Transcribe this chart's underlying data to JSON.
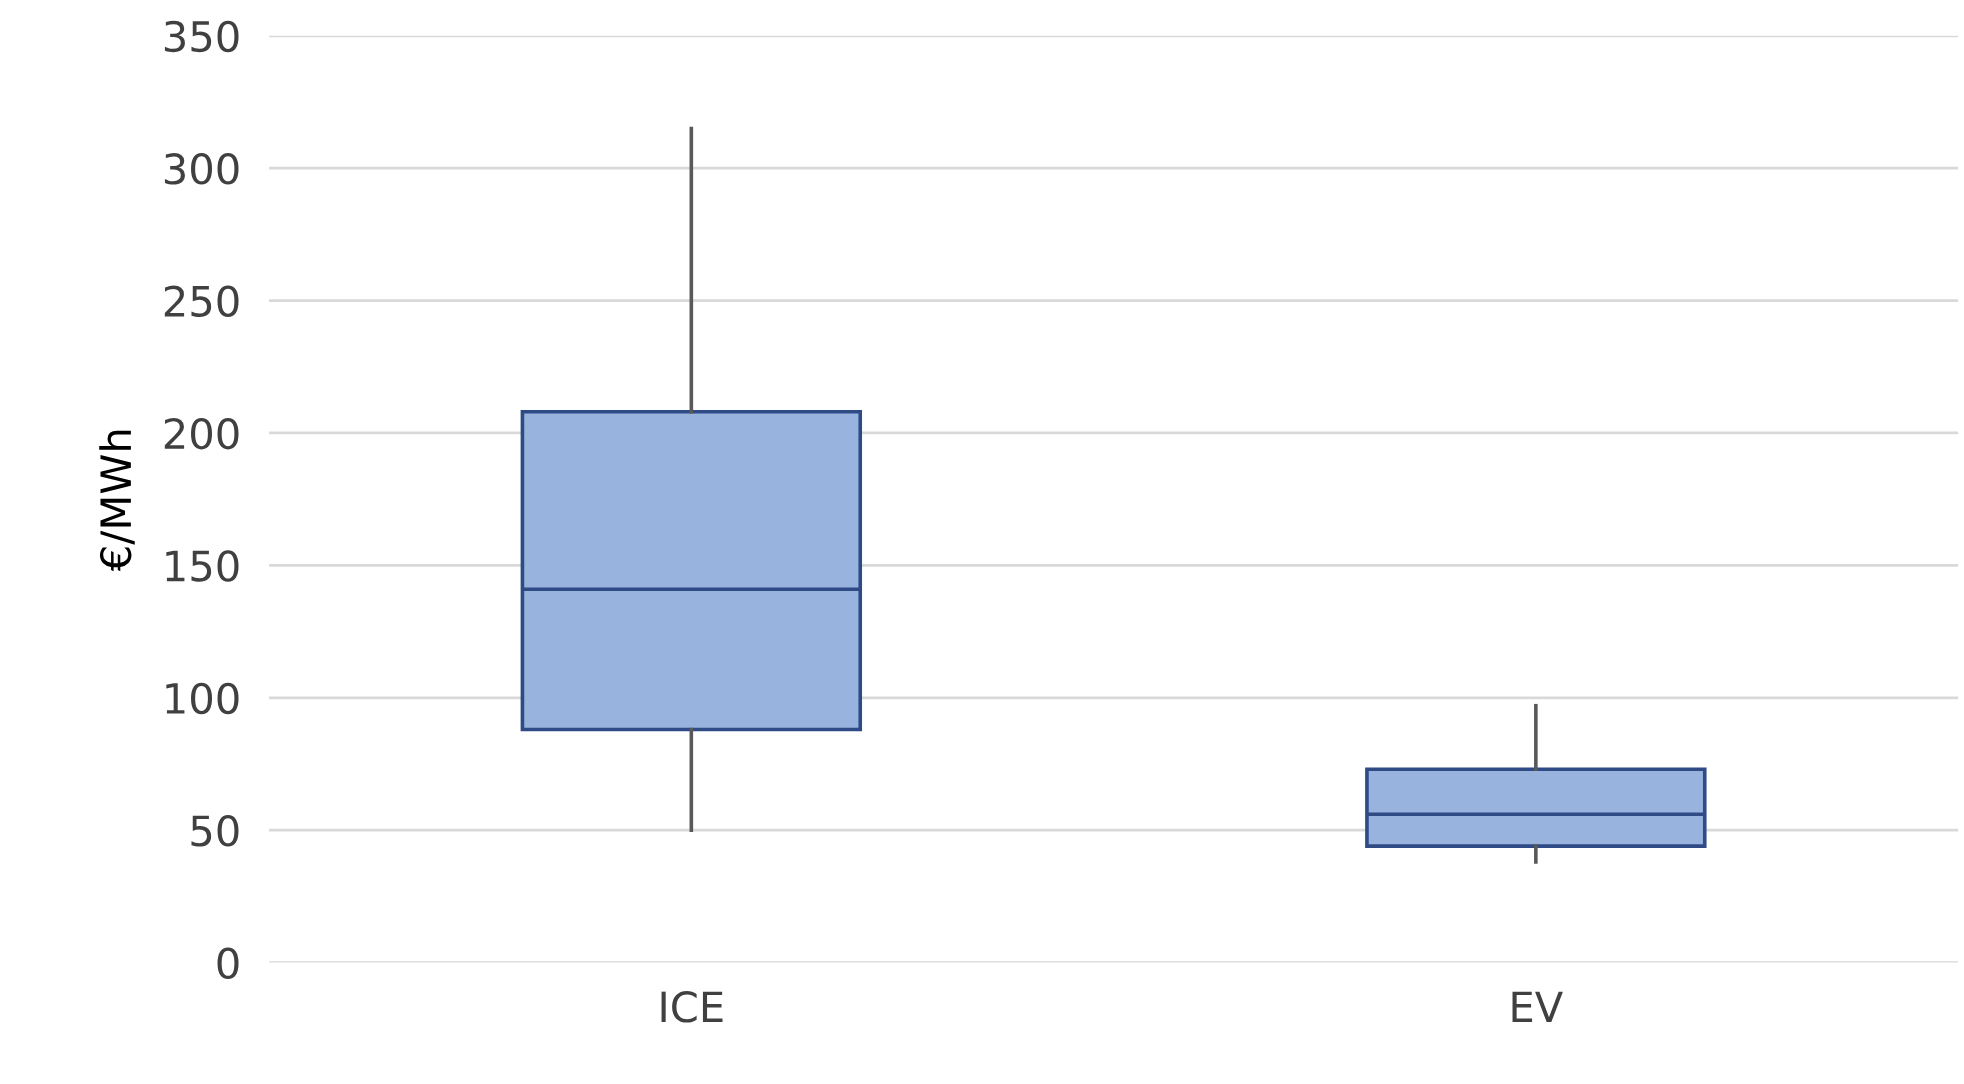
{
  "chart_data": {
    "type": "box",
    "ylabel": "€/MWh",
    "categories": [
      "ICE",
      "EV"
    ],
    "boxes": [
      {
        "low": 50,
        "q1": 88,
        "median": 141,
        "q3": 208,
        "high": 315
      },
      {
        "low": 38,
        "q1": 44,
        "median": 56,
        "q3": 73,
        "high": 97
      }
    ],
    "color": "#98b3de",
    "ylim": [
      0,
      350
    ],
    "yticks": [
      0,
      50,
      100,
      150,
      200,
      250,
      300,
      350
    ],
    "grid": "y",
    "legend": false
  }
}
